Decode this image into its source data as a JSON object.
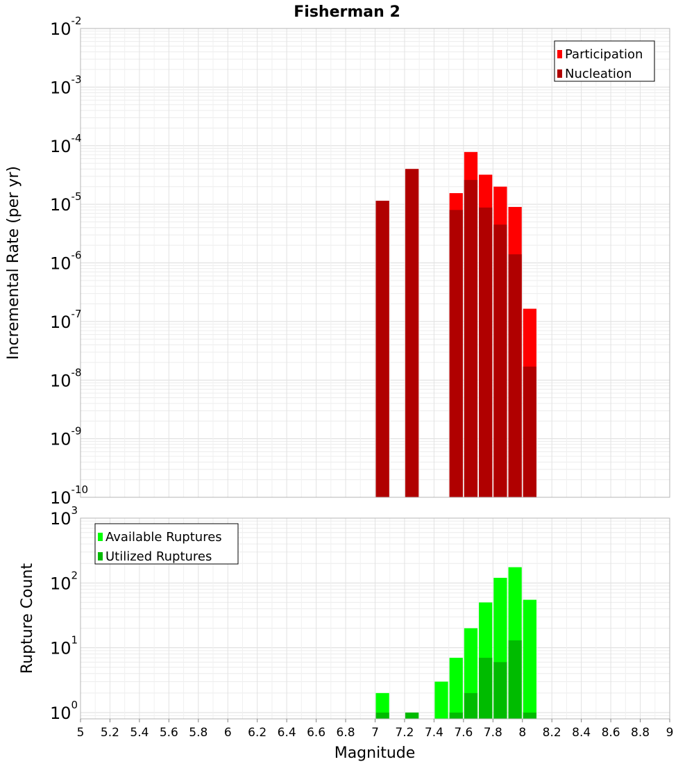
{
  "chart_data": [
    {
      "type": "bar",
      "title": "Fisherman 2",
      "xlabel": "Magnitude",
      "ylabel": "Incremental Rate (per yr)",
      "xlim": [
        5,
        9
      ],
      "ylim": [
        1e-10,
        0.01
      ],
      "yscale": "log",
      "bin_width": 0.1,
      "legend_position": "top-right",
      "x_ticks": [
        "5",
        "5.2",
        "5.4",
        "5.6",
        "5.8",
        "6",
        "6.2",
        "6.4",
        "6.6",
        "6.8",
        "7",
        "7.2",
        "7.4",
        "7.6",
        "7.8",
        "8",
        "8.2",
        "8.4",
        "8.6",
        "8.8",
        "9"
      ],
      "y_ticks": [
        {
          "base": "10",
          "exp": "-10"
        },
        {
          "base": "10",
          "exp": "-9"
        },
        {
          "base": "10",
          "exp": "-8"
        },
        {
          "base": "10",
          "exp": "-7"
        },
        {
          "base": "10",
          "exp": "-6"
        },
        {
          "base": "10",
          "exp": "-5"
        },
        {
          "base": "10",
          "exp": "-4"
        },
        {
          "base": "10",
          "exp": "-3"
        },
        {
          "base": "10",
          "exp": "-2"
        }
      ],
      "x": [
        7.05,
        7.25,
        7.55,
        7.65,
        7.75,
        7.85,
        7.95,
        8.05
      ],
      "series": [
        {
          "name": "Participation",
          "color": "#ff0000",
          "values": [
            1.15e-05,
            4e-05,
            1.55e-05,
            7.8e-05,
            3.2e-05,
            2e-05,
            9e-06,
            1.65e-07
          ]
        },
        {
          "name": "Nucleation",
          "color": "#b00000",
          "values": [
            1.15e-05,
            4e-05,
            8e-06,
            2.6e-05,
            8.8e-06,
            4.5e-06,
            1.4e-06,
            1.7e-08
          ]
        }
      ]
    },
    {
      "type": "bar",
      "title": "",
      "xlabel": "Magnitude",
      "ylabel": "Rupture Count",
      "xlim": [
        5,
        9
      ],
      "ylim": [
        0.8,
        1000
      ],
      "yscale": "log",
      "bin_width": 0.1,
      "legend_position": "top-left",
      "y_ticks": [
        {
          "base": "10",
          "exp": "0",
          "value": 1
        },
        {
          "base": "10",
          "exp": "1",
          "value": 10
        },
        {
          "base": "10",
          "exp": "2",
          "value": 100
        },
        {
          "base": "10",
          "exp": "3",
          "value": 1000
        }
      ],
      "x": [
        7.05,
        7.25,
        7.45,
        7.55,
        7.65,
        7.75,
        7.85,
        7.95,
        8.05
      ],
      "series": [
        {
          "name": "Available Ruptures",
          "color": "#00ff00",
          "values": [
            2,
            1,
            3,
            7,
            20,
            50,
            120,
            175,
            55
          ]
        },
        {
          "name": "Utilized Ruptures",
          "color": "#00bb00",
          "values": [
            1,
            1,
            0,
            1,
            2,
            7,
            6,
            13,
            1
          ]
        }
      ]
    }
  ]
}
